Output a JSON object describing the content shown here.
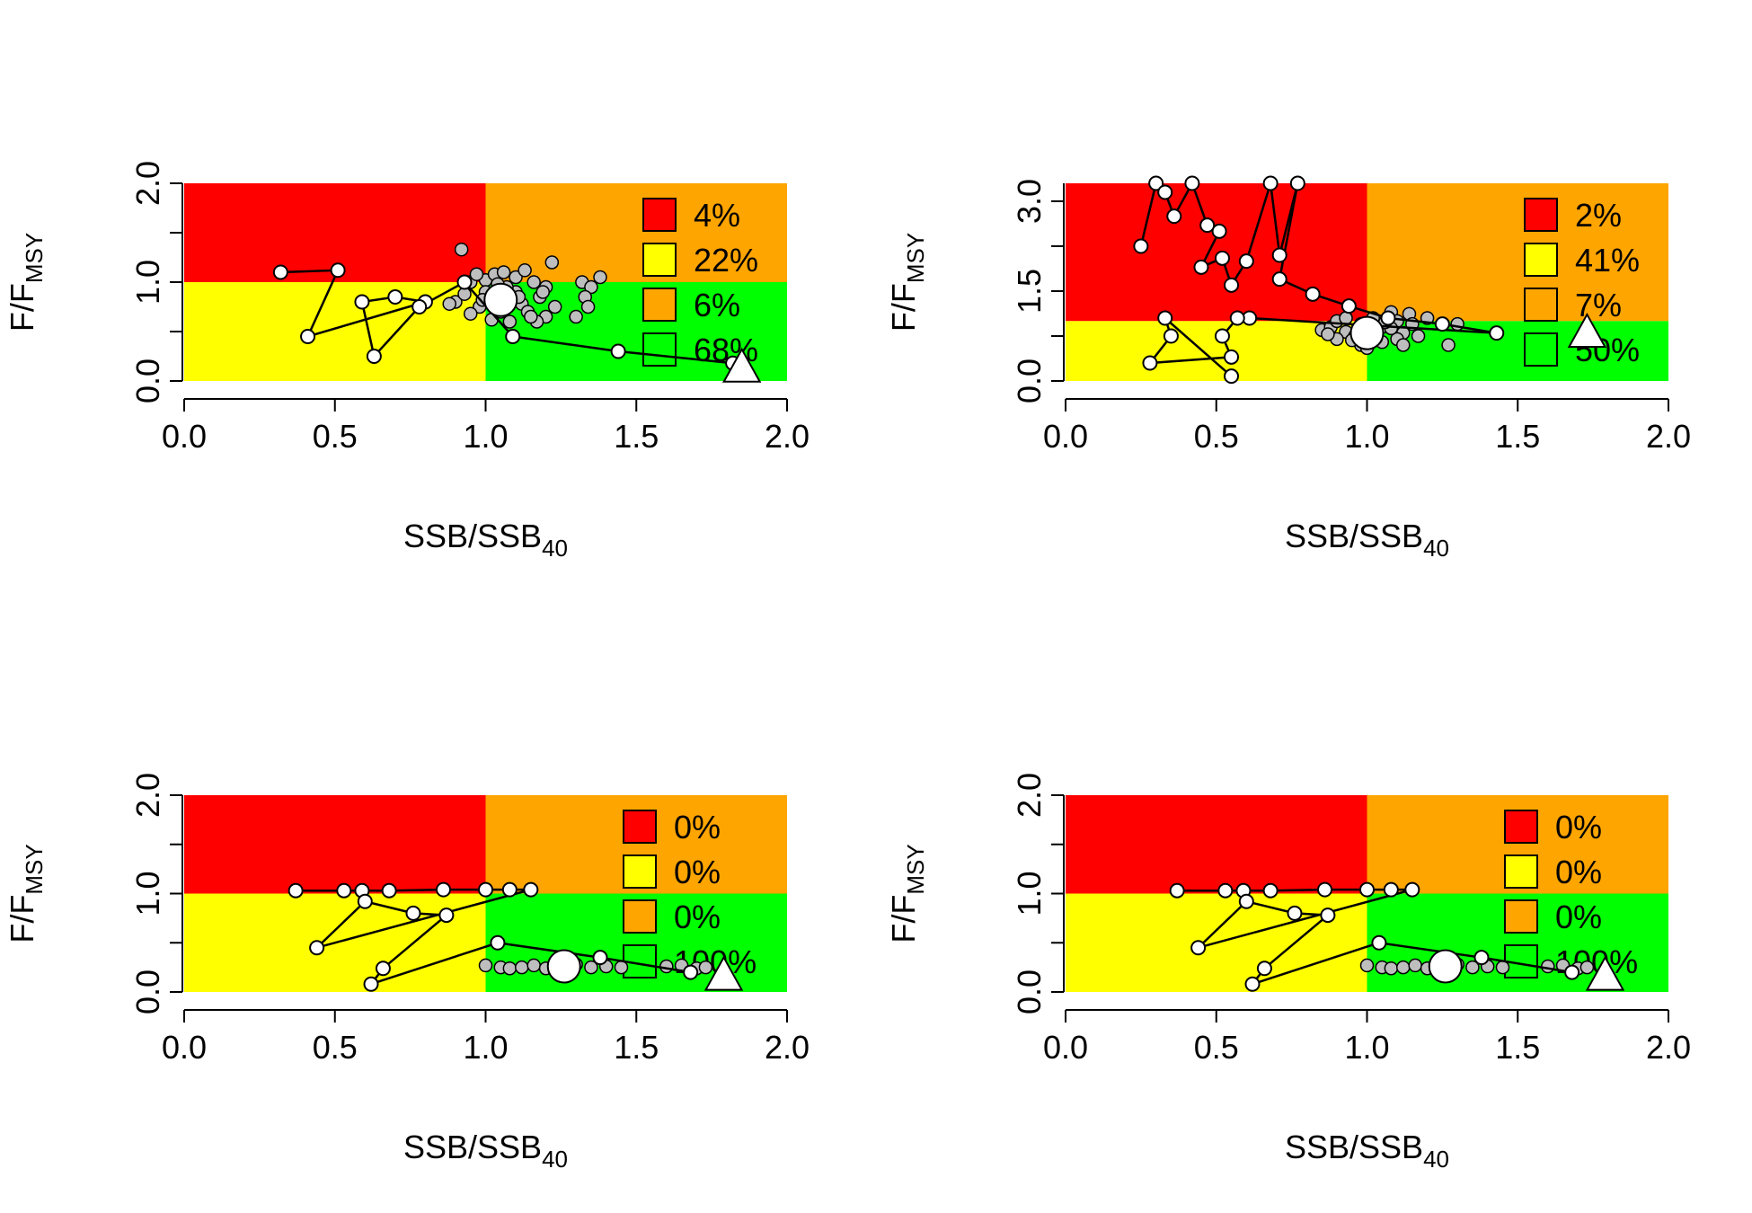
{
  "colors": {
    "red": "#ff0000",
    "yellow": "#ffff00",
    "orange": "#ffa500",
    "green": "#00ff00",
    "history_point": "#ffffff",
    "cloud_point": "#bebebe"
  },
  "chart_data": [
    {
      "type": "scatter",
      "xlabel": "SSB/SSB40",
      "xlabel_main": "SSB/SSB",
      "xlabel_sub": "40",
      "ylabel_main": "F/F",
      "ylabel_sub": "MSY",
      "xlim": [
        0,
        2
      ],
      "ylim": [
        0,
        2
      ],
      "xticks": [
        "0.0",
        "0.5",
        "1.0",
        "1.5",
        "2.0"
      ],
      "yticks": [
        "0.0",
        "1.0",
        "2.0"
      ],
      "legend": {
        "position": "top-right",
        "entries": [
          {
            "color": "red",
            "label": "4%"
          },
          {
            "color": "yellow",
            "label": "22%"
          },
          {
            "color": "orange",
            "label": "6%"
          },
          {
            "color": "green",
            "label": "68%"
          }
        ]
      },
      "history": [
        [
          0.32,
          1.1
        ],
        [
          0.51,
          1.12
        ],
        [
          0.41,
          0.45
        ],
        [
          0.8,
          0.8
        ],
        [
          0.7,
          0.85
        ],
        [
          0.59,
          0.8
        ],
        [
          0.63,
          0.25
        ],
        [
          0.78,
          0.75
        ],
        [
          0.93,
          1.0
        ],
        [
          1.09,
          0.45
        ],
        [
          1.44,
          0.3
        ],
        [
          1.82,
          0.18
        ]
      ],
      "current": [
        1.05,
        0.82
      ],
      "terminal": [
        1.85,
        0.12
      ],
      "cloud": [
        [
          0.92,
          1.33
        ],
        [
          0.95,
          1.0
        ],
        [
          1.0,
          1.02
        ],
        [
          1.03,
          1.08
        ],
        [
          1.06,
          1.1
        ],
        [
          1.1,
          1.05
        ],
        [
          1.13,
          1.12
        ],
        [
          1.16,
          1.0
        ],
        [
          1.2,
          0.95
        ],
        [
          1.22,
          1.2
        ],
        [
          1.18,
          0.85
        ],
        [
          1.12,
          0.78
        ],
        [
          1.05,
          0.7
        ],
        [
          0.98,
          0.75
        ],
        [
          0.9,
          0.8
        ],
        [
          0.95,
          0.68
        ],
        [
          1.02,
          0.62
        ],
        [
          1.08,
          0.6
        ],
        [
          1.14,
          0.7
        ],
        [
          1.2,
          0.65
        ],
        [
          1.23,
          0.75
        ],
        [
          1.17,
          0.6
        ],
        [
          1.1,
          0.9
        ],
        [
          1.0,
          0.9
        ],
        [
          0.93,
          0.88
        ],
        [
          1.07,
          0.95
        ],
        [
          1.32,
          1.0
        ],
        [
          1.35,
          0.95
        ],
        [
          1.38,
          1.05
        ],
        [
          1.33,
          0.85
        ],
        [
          1.3,
          0.65
        ],
        [
          1.34,
          0.75
        ],
        [
          0.88,
          0.78
        ],
        [
          0.97,
          1.08
        ],
        [
          1.04,
          0.98
        ],
        [
          1.19,
          0.9
        ],
        [
          1.15,
          0.65
        ],
        [
          1.06,
          0.72
        ],
        [
          0.99,
          0.82
        ],
        [
          1.11,
          0.85
        ]
      ]
    },
    {
      "type": "scatter",
      "xlabel": "SSB/SSB40",
      "xlabel_main": "SSB/SSB",
      "xlabel_sub": "40",
      "ylabel_main": "F/F",
      "ylabel_sub": "MSY",
      "xlim": [
        0,
        2
      ],
      "ylim": [
        0,
        3.3
      ],
      "xticks": [
        "0.0",
        "0.5",
        "1.0",
        "1.5",
        "2.0"
      ],
      "yticks": [
        "0.0",
        "1.5",
        "3.0"
      ],
      "legend": {
        "position": "top-right",
        "entries": [
          {
            "color": "red",
            "label": "2%"
          },
          {
            "color": "yellow",
            "label": "41%"
          },
          {
            "color": "orange",
            "label": "7%"
          },
          {
            "color": "green",
            "label": "50%"
          }
        ]
      },
      "history": [
        [
          0.25,
          2.25
        ],
        [
          0.3,
          3.3
        ],
        [
          0.33,
          3.15
        ],
        [
          0.36,
          2.75
        ],
        [
          0.42,
          3.3
        ],
        [
          0.47,
          2.6
        ],
        [
          0.51,
          2.5
        ],
        [
          0.45,
          1.9
        ],
        [
          0.52,
          2.05
        ],
        [
          0.55,
          1.6
        ],
        [
          0.6,
          2.0
        ],
        [
          0.68,
          3.3
        ],
        [
          0.71,
          2.1
        ],
        [
          0.77,
          3.3
        ],
        [
          0.71,
          1.7
        ],
        [
          0.82,
          1.45
        ],
        [
          0.94,
          1.25
        ],
        [
          1.07,
          1.05
        ],
        [
          1.25,
          0.95
        ],
        [
          1.43,
          0.8
        ],
        [
          0.61,
          1.05
        ],
        [
          0.57,
          1.05
        ],
        [
          0.52,
          0.75
        ],
        [
          0.55,
          0.4
        ],
        [
          0.28,
          0.3
        ],
        [
          0.35,
          0.75
        ],
        [
          0.33,
          1.05
        ],
        [
          0.55,
          0.08
        ]
      ],
      "current": [
        1.0,
        0.8
      ],
      "terminal": [
        1.73,
        0.78
      ],
      "cloud": [
        [
          0.85,
          0.85
        ],
        [
          0.88,
          0.9
        ],
        [
          0.9,
          1.0
        ],
        [
          0.93,
          0.82
        ],
        [
          0.96,
          0.75
        ],
        [
          0.98,
          0.95
        ],
        [
          1.02,
          1.05
        ],
        [
          1.05,
          0.9
        ],
        [
          1.08,
          1.15
        ],
        [
          1.1,
          1.0
        ],
        [
          1.12,
          0.8
        ],
        [
          1.14,
          1.12
        ],
        [
          1.1,
          0.7
        ],
        [
          1.05,
          0.65
        ],
        [
          0.98,
          0.6
        ],
        [
          0.95,
          0.68
        ],
        [
          0.9,
          0.7
        ],
        [
          0.87,
          0.78
        ],
        [
          0.93,
          1.05
        ],
        [
          1.03,
          0.72
        ],
        [
          1.08,
          0.88
        ],
        [
          1.15,
          0.95
        ],
        [
          1.17,
          0.75
        ],
        [
          1.2,
          1.05
        ],
        [
          1.27,
          0.6
        ],
        [
          1.3,
          0.95
        ],
        [
          1.0,
          0.55
        ],
        [
          1.06,
          0.98
        ],
        [
          0.97,
          0.88
        ],
        [
          1.12,
          0.6
        ]
      ]
    },
    {
      "type": "scatter",
      "xlabel": "SSB/SSB40",
      "xlabel_main": "SSB/SSB",
      "xlabel_sub": "40",
      "ylabel_main": "F/F",
      "ylabel_sub": "MSY",
      "xlim": [
        0,
        2
      ],
      "ylim": [
        0,
        2
      ],
      "xticks": [
        "0.0",
        "0.5",
        "1.0",
        "1.5",
        "2.0"
      ],
      "yticks": [
        "0.0",
        "1.0",
        "2.0"
      ],
      "legend": {
        "position": "top-right",
        "entries": [
          {
            "color": "red",
            "label": "0%"
          },
          {
            "color": "yellow",
            "label": "0%"
          },
          {
            "color": "orange",
            "label": "0%"
          },
          {
            "color": "green",
            "label": "100%"
          }
        ]
      },
      "history": [
        [
          0.37,
          1.03
        ],
        [
          0.53,
          1.03
        ],
        [
          0.59,
          1.03
        ],
        [
          0.68,
          1.03
        ],
        [
          0.86,
          1.04
        ],
        [
          1.0,
          1.04
        ],
        [
          1.08,
          1.04
        ],
        [
          1.15,
          1.04
        ],
        [
          0.44,
          0.45
        ],
        [
          0.6,
          0.92
        ],
        [
          0.76,
          0.8
        ],
        [
          0.87,
          0.78
        ],
        [
          0.66,
          0.24
        ],
        [
          0.62,
          0.08
        ],
        [
          1.04,
          0.5
        ],
        [
          1.38,
          0.35
        ],
        [
          1.68,
          0.2
        ]
      ],
      "current": [
        1.26,
        0.26
      ],
      "terminal": [
        1.79,
        0.15
      ],
      "cloud": [
        [
          1.0,
          0.27
        ],
        [
          1.05,
          0.25
        ],
        [
          1.08,
          0.24
        ],
        [
          1.12,
          0.25
        ],
        [
          1.16,
          0.27
        ],
        [
          1.2,
          0.24
        ],
        [
          1.3,
          0.28
        ],
        [
          1.35,
          0.25
        ],
        [
          1.4,
          0.26
        ],
        [
          1.45,
          0.25
        ],
        [
          1.6,
          0.26
        ],
        [
          1.65,
          0.27
        ],
        [
          1.7,
          0.24
        ],
        [
          1.73,
          0.25
        ]
      ]
    },
    {
      "type": "scatter",
      "xlabel": "SSB/SSB40",
      "xlabel_main": "SSB/SSB",
      "xlabel_sub": "40",
      "ylabel_main": "F/F",
      "ylabel_sub": "MSY",
      "xlim": [
        0,
        2
      ],
      "ylim": [
        0,
        2
      ],
      "xticks": [
        "0.0",
        "0.5",
        "1.0",
        "1.5",
        "2.0"
      ],
      "yticks": [
        "0.0",
        "1.0",
        "2.0"
      ],
      "legend": {
        "position": "top-right",
        "entries": [
          {
            "color": "red",
            "label": "0%"
          },
          {
            "color": "yellow",
            "label": "0%"
          },
          {
            "color": "orange",
            "label": "0%"
          },
          {
            "color": "green",
            "label": "100%"
          }
        ]
      },
      "history": [
        [
          0.37,
          1.03
        ],
        [
          0.53,
          1.03
        ],
        [
          0.59,
          1.03
        ],
        [
          0.68,
          1.03
        ],
        [
          0.86,
          1.04
        ],
        [
          1.0,
          1.04
        ],
        [
          1.08,
          1.04
        ],
        [
          1.15,
          1.04
        ],
        [
          0.44,
          0.45
        ],
        [
          0.6,
          0.92
        ],
        [
          0.76,
          0.8
        ],
        [
          0.87,
          0.78
        ],
        [
          0.66,
          0.24
        ],
        [
          0.62,
          0.08
        ],
        [
          1.04,
          0.5
        ],
        [
          1.38,
          0.35
        ],
        [
          1.68,
          0.2
        ]
      ],
      "current": [
        1.26,
        0.26
      ],
      "terminal": [
        1.79,
        0.15
      ],
      "cloud": [
        [
          1.0,
          0.27
        ],
        [
          1.05,
          0.25
        ],
        [
          1.08,
          0.24
        ],
        [
          1.12,
          0.25
        ],
        [
          1.16,
          0.27
        ],
        [
          1.2,
          0.24
        ],
        [
          1.3,
          0.28
        ],
        [
          1.35,
          0.25
        ],
        [
          1.4,
          0.26
        ],
        [
          1.45,
          0.25
        ],
        [
          1.6,
          0.26
        ],
        [
          1.65,
          0.27
        ],
        [
          1.7,
          0.24
        ],
        [
          1.73,
          0.25
        ]
      ]
    }
  ]
}
